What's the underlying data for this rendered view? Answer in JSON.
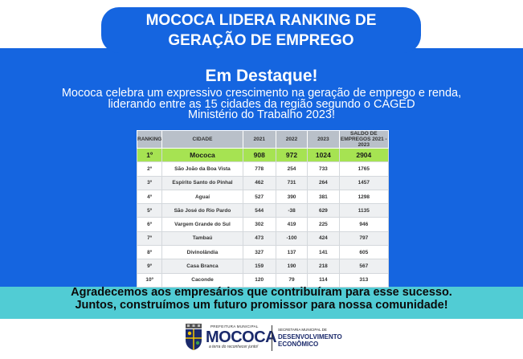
{
  "banner": {
    "line1": "MOCOCA LIDERA RANKING DE",
    "line2": "GERAÇÃO DE EMPREGO"
  },
  "headline": "Em Destaque!",
  "intro": {
    "line1": "Mococa celebra um expressivo crescimento na geração de emprego e renda,",
    "line2": "liderando entre as 15 cidades da região segundo o CAGED",
    "line3": "Ministério do Trabalho 2023!"
  },
  "table": {
    "headers": [
      "RANKING",
      "CIDADE",
      "2021",
      "2022",
      "2023",
      "SALDO DE EMPREGOS 2021 - 2023"
    ],
    "rows": [
      [
        "1º",
        "Mococa",
        "908",
        "972",
        "1024",
        "2904"
      ],
      [
        "2º",
        "São João da Boa Vista",
        "778",
        "254",
        "733",
        "1765"
      ],
      [
        "3º",
        "Espírito Santo do Pinhal",
        "462",
        "731",
        "264",
        "1457"
      ],
      [
        "4º",
        "Aguaí",
        "527",
        "390",
        "381",
        "1298"
      ],
      [
        "5º",
        "São José do Rio Pardo",
        "544",
        "-38",
        "629",
        "1135"
      ],
      [
        "6º",
        "Vargem Grande do Sul",
        "302",
        "419",
        "225",
        "946"
      ],
      [
        "7º",
        "Tambaú",
        "473",
        "-100",
        "424",
        "797"
      ],
      [
        "8º",
        "Divinolândia",
        "327",
        "137",
        "141",
        "605"
      ],
      [
        "9º",
        "Casa Branca",
        "159",
        "190",
        "218",
        "567"
      ],
      [
        "10º",
        "Caconde",
        "120",
        "79",
        "114",
        "313"
      ]
    ]
  },
  "thanks": {
    "line1": "Agradecemos aos empresários que contribuíram para esse sucesso.",
    "line2": "Juntos, construímos um futuro promissor para nossa comunidade!"
  },
  "footer": {
    "prefeitura": "PREFEITURA MUNICIPAL",
    "logo": "MOCOCA",
    "tagline": "a terra do reconhecer junto!",
    "secretaria": "SECRETARIA MUNICIPAL DE",
    "department_line1": "DESENVOLVIMENTO",
    "department_line2": "ECONÔMICO"
  },
  "colors": {
    "blue": "#1565e0",
    "cyan": "#51ccd4",
    "highlight": "#a6e352",
    "navy": "#1b2a6b"
  },
  "icons": {
    "crest": "city-crest-icon"
  }
}
